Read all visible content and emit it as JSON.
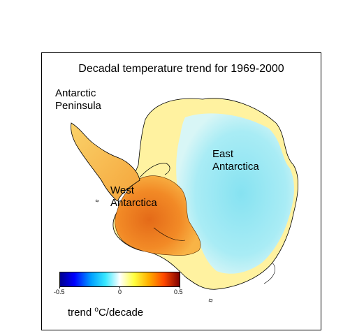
{
  "map": {
    "title": "Decadal temperature trend for 1969-2000",
    "regions": {
      "peninsula_line1": "Antarctic",
      "peninsula_line2": "Peninsula",
      "west_line1": "West",
      "west_line2": "Antarctica",
      "east_line1": "East",
      "east_line2": "Antarctica"
    },
    "colorbar": {
      "min_label": "-0.5",
      "mid_label": "0",
      "max_label": "0.5",
      "range": [
        -0.5,
        0.5
      ],
      "colors": [
        "#000090",
        "#0000ff",
        "#00a0ff",
        "#38e8ff",
        "#ffffff",
        "#ffff40",
        "#ffb000",
        "#ff4800",
        "#800000"
      ]
    },
    "legend": {
      "trend_word": "trend",
      "degree_symbol": "o",
      "unit": "C/decade"
    },
    "palette": {
      "east_cool": "#a8ecf6",
      "east_core": "#8ce4f2",
      "transition_yellow": "#fff29a",
      "west_orange": "#f89a2a",
      "west_core": "#e8701c",
      "peninsula_orange": "#f5a83a"
    }
  }
}
